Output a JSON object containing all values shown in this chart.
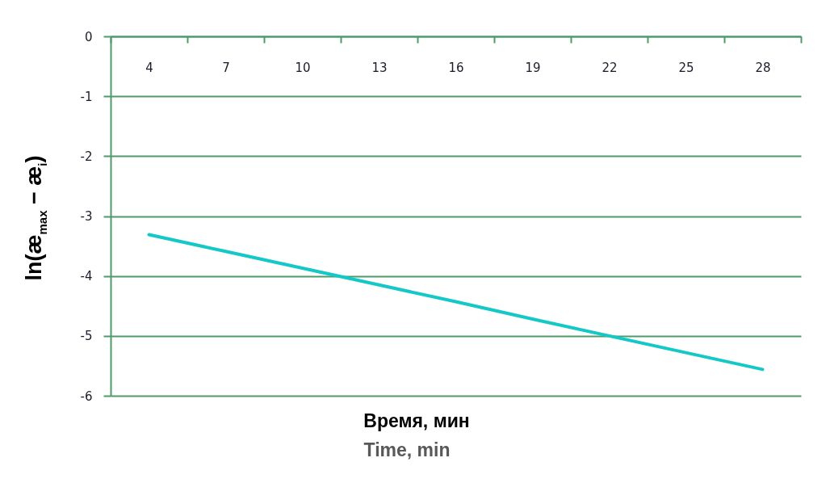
{
  "chart_data": {
    "type": "line",
    "categories": [
      "4",
      "7",
      "10",
      "13",
      "16",
      "19",
      "22",
      "25",
      "28"
    ],
    "values": [
      -3.31,
      -3.59,
      -3.87,
      -4.15,
      -4.43,
      -4.72,
      -5.0,
      -5.28,
      -5.56
    ],
    "color": "#14c8c8",
    "ylim": [
      -6,
      0
    ],
    "yticks": [
      -6,
      -5,
      -4,
      -3,
      -2,
      -1,
      0
    ],
    "grid": "y",
    "xlabel": "Время, мин",
    "ylabel": "ln(æ$_{max}$ − æ$_{i}$)",
    "annotations": [
      "Time, min"
    ]
  }
}
